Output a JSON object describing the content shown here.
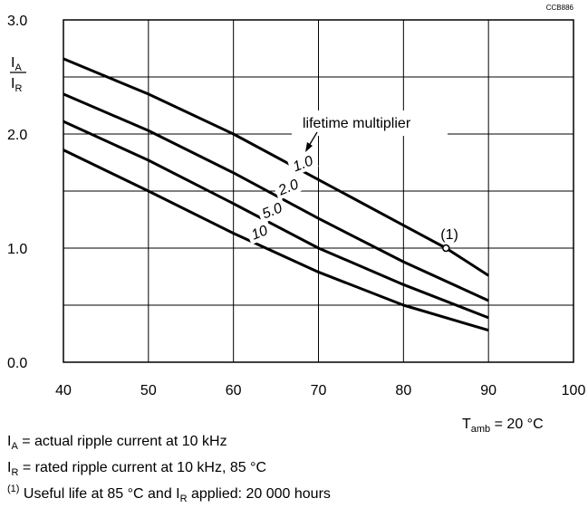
{
  "code": "CCB886",
  "chart_data": {
    "type": "line",
    "xlim": [
      40,
      100
    ],
    "ylim": [
      0.0,
      3.0
    ],
    "x_ticks": [
      "40",
      "50",
      "60",
      "70",
      "80",
      "90",
      "100"
    ],
    "x_tick_values": [
      40,
      50,
      60,
      70,
      80,
      90,
      100
    ],
    "y_ticks": [
      "0.0",
      "1.0",
      "2.0",
      "3.0"
    ],
    "y_tick_values": [
      0.0,
      1.0,
      2.0,
      3.0
    ],
    "y_minor_grid": [
      0.5,
      1.5,
      2.5
    ],
    "grid": true,
    "ylabel_num": "I",
    "ylabel_num_sub": "A",
    "ylabel_den": "I",
    "ylabel_den_sub": "R",
    "legend_title": "lifetime multiplier",
    "series": [
      {
        "name": "1.0",
        "x": [
          40,
          50,
          60,
          70,
          80,
          85,
          90
        ],
        "y": [
          2.66,
          2.35,
          2.0,
          1.6,
          1.2,
          1.0,
          0.76
        ]
      },
      {
        "name": "2.0",
        "x": [
          40,
          50,
          60,
          70,
          80,
          90
        ],
        "y": [
          2.35,
          2.03,
          1.66,
          1.26,
          0.88,
          0.54
        ]
      },
      {
        "name": "5.0",
        "x": [
          40,
          50,
          60,
          70,
          80,
          90
        ],
        "y": [
          2.11,
          1.77,
          1.39,
          1.0,
          0.68,
          0.39
        ]
      },
      {
        "name": "10",
        "x": [
          40,
          50,
          60,
          70,
          80,
          90
        ],
        "y": [
          1.86,
          1.5,
          1.13,
          0.79,
          0.5,
          0.28
        ]
      }
    ],
    "annotation": {
      "label": "(1)",
      "x": 85,
      "y": 1.0
    }
  },
  "tamb": {
    "prefix": "T",
    "sub": "amb",
    "suffix": " = 20 °C"
  },
  "notes": {
    "line1_prefix": "I",
    "line1_sub": "A",
    "line1_text": " = actual ripple current at 10 kHz",
    "line2_prefix": "I",
    "line2_sub": "R",
    "line2_text": " = rated ripple current at 10 kHz, 85 °C",
    "line3_sup": "(1)",
    "line3_text": " Useful life at 85 °C and I",
    "line3_sub": "R",
    "line3_suffix": " applied: 20 000 hours"
  }
}
